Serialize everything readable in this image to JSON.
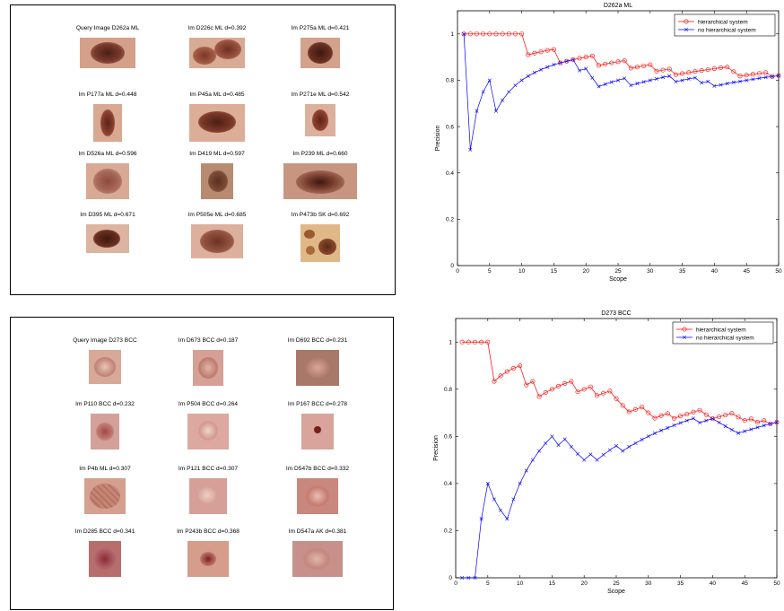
{
  "figures": [
    {
      "query_caption": "Query Image D262a ML",
      "results": [
        "Im D226c ML d=0.392",
        "Im P275a ML d=0.421",
        "Im P177a ML d=0.448",
        "Im P45a ML d=0.485",
        "Im P271e ML d=0.542",
        "Im D526a ML d=0.596",
        "Im D419 ML d=0.597",
        "Im P239 ML d=0.660",
        "Im D395 ML d=0.671",
        "Im P505e ML d=0.685",
        "Im P473b SK d=0.692"
      ]
    },
    {
      "query_caption": "Query Image D273 BCC",
      "results": [
        "Im D673 BCC d=0.187",
        "Im D692 BCC d=0.231",
        "Im P110 BCC d=0.232",
        "Im P504 BCC d=0.264",
        "Im P167 BCC d=0.278",
        "Im P4b ML d=0.307",
        "Im P121 BCC d=0.307",
        "Im D547b BCC d=0.332",
        "Im D285 BCC d=0.341",
        "Im P243b BCC d=0.368",
        "Im D547a AK d=0.381"
      ]
    }
  ],
  "chart_data": [
    {
      "type": "line",
      "title": "D262a ML",
      "xlabel": "Scope",
      "ylabel": "Precision",
      "xlim": [
        0,
        50
      ],
      "ylim": [
        0,
        1.1
      ],
      "xticks": [
        0,
        5,
        10,
        15,
        20,
        25,
        30,
        35,
        40,
        45,
        50
      ],
      "yticks": [
        0,
        0.2,
        0.4,
        0.6,
        0.8,
        1
      ],
      "legend_position": "top-right",
      "x": [
        1,
        2,
        3,
        4,
        5,
        6,
        7,
        8,
        9,
        10,
        11,
        12,
        13,
        14,
        15,
        16,
        17,
        18,
        19,
        20,
        21,
        22,
        23,
        24,
        25,
        26,
        27,
        28,
        29,
        30,
        31,
        32,
        33,
        34,
        35,
        36,
        37,
        38,
        39,
        40,
        41,
        42,
        43,
        44,
        45,
        46,
        47,
        48,
        49,
        50
      ],
      "series": [
        {
          "name": "hierarchical system",
          "color": "#ff0000",
          "marker": "circle",
          "values": [
            1,
            1,
            1,
            1,
            1,
            1,
            1,
            1,
            1,
            1,
            0.91,
            0.917,
            0.923,
            0.929,
            0.933,
            0.875,
            0.882,
            0.889,
            0.895,
            0.9,
            0.905,
            0.864,
            0.87,
            0.875,
            0.88,
            0.885,
            0.852,
            0.857,
            0.862,
            0.867,
            0.839,
            0.844,
            0.848,
            0.824,
            0.829,
            0.833,
            0.838,
            0.842,
            0.846,
            0.85,
            0.854,
            0.857,
            0.837,
            0.818,
            0.822,
            0.826,
            0.83,
            0.833,
            0.816,
            0.82
          ]
        },
        {
          "name": "no hierarchical system",
          "color": "#0000ff",
          "marker": "x",
          "values": [
            1,
            0.5,
            0.667,
            0.75,
            0.8,
            0.667,
            0.714,
            0.75,
            0.778,
            0.8,
            0.818,
            0.833,
            0.846,
            0.857,
            0.867,
            0.875,
            0.882,
            0.889,
            0.842,
            0.85,
            0.81,
            0.773,
            0.783,
            0.792,
            0.8,
            0.808,
            0.778,
            0.786,
            0.793,
            0.8,
            0.806,
            0.813,
            0.818,
            0.794,
            0.8,
            0.806,
            0.811,
            0.789,
            0.795,
            0.775,
            0.78,
            0.786,
            0.791,
            0.795,
            0.8,
            0.804,
            0.809,
            0.813,
            0.816,
            0.82
          ]
        }
      ]
    },
    {
      "type": "line",
      "title": "D273 BCC",
      "xlabel": "Scope",
      "ylabel": "Precision",
      "xlim": [
        0,
        50
      ],
      "ylim": [
        0,
        1.1
      ],
      "xticks": [
        0,
        5,
        10,
        15,
        20,
        25,
        30,
        35,
        40,
        45,
        50
      ],
      "yticks": [
        0,
        0.2,
        0.4,
        0.6,
        0.8,
        1
      ],
      "legend_position": "top-right",
      "x": [
        1,
        2,
        3,
        4,
        5,
        6,
        7,
        8,
        9,
        10,
        11,
        12,
        13,
        14,
        15,
        16,
        17,
        18,
        19,
        20,
        21,
        22,
        23,
        24,
        25,
        26,
        27,
        28,
        29,
        30,
        31,
        32,
        33,
        34,
        35,
        36,
        37,
        38,
        39,
        40,
        41,
        42,
        43,
        44,
        45,
        46,
        47,
        48,
        49,
        50
      ],
      "series": [
        {
          "name": "hierarchical system",
          "color": "#ff0000",
          "marker": "circle",
          "values": [
            1,
            1,
            1,
            1,
            1,
            0.833,
            0.857,
            0.875,
            0.889,
            0.9,
            0.818,
            0.833,
            0.769,
            0.786,
            0.8,
            0.813,
            0.824,
            0.833,
            0.789,
            0.8,
            0.81,
            0.773,
            0.783,
            0.792,
            0.76,
            0.731,
            0.704,
            0.714,
            0.724,
            0.7,
            0.677,
            0.688,
            0.697,
            0.676,
            0.686,
            0.694,
            0.703,
            0.711,
            0.692,
            0.675,
            0.683,
            0.69,
            0.698,
            0.682,
            0.667,
            0.674,
            0.66,
            0.667,
            0.653,
            0.66
          ]
        },
        {
          "name": "no hierarchical system",
          "color": "#0000ff",
          "marker": "x",
          "values": [
            0,
            0,
            0,
            0.25,
            0.4,
            0.333,
            0.286,
            0.25,
            0.333,
            0.4,
            0.455,
            0.5,
            0.538,
            0.571,
            0.6,
            0.563,
            0.588,
            0.556,
            0.526,
            0.5,
            0.524,
            0.5,
            0.522,
            0.542,
            0.56,
            0.538,
            0.556,
            0.571,
            0.586,
            0.6,
            0.613,
            0.625,
            0.636,
            0.647,
            0.657,
            0.667,
            0.676,
            0.658,
            0.667,
            0.675,
            0.659,
            0.643,
            0.628,
            0.614,
            0.622,
            0.63,
            0.638,
            0.646,
            0.653,
            0.66
          ]
        }
      ]
    }
  ]
}
